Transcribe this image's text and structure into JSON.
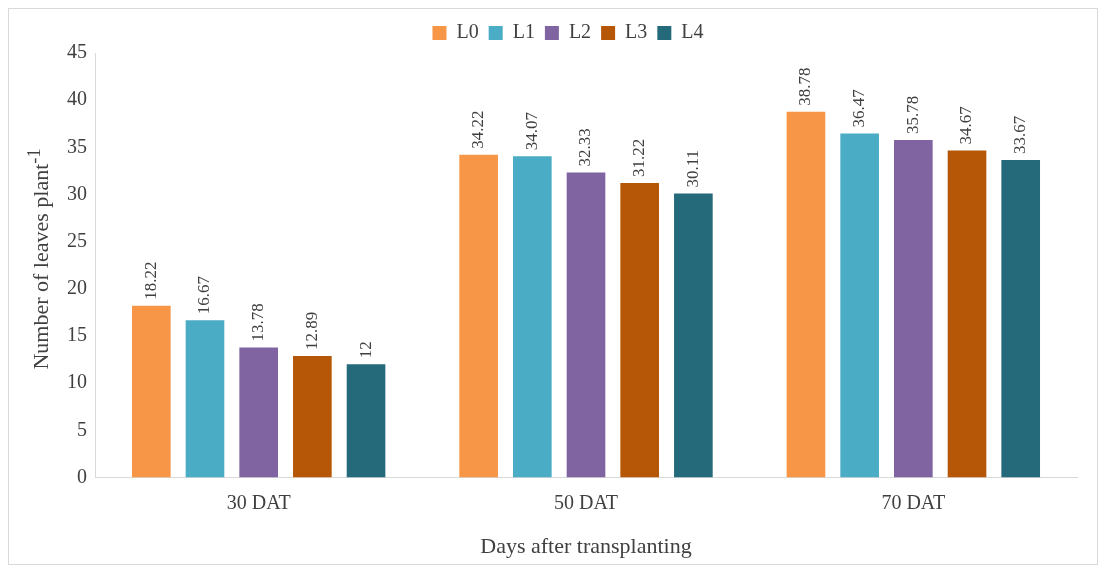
{
  "chart_data": {
    "type": "bar",
    "xlabel": "Days after transplanting",
    "ylabel": "Number of leaves plant$^{-1}$",
    "categories": [
      "30 DAT",
      "50 DAT",
      "70 DAT"
    ],
    "series": [
      {
        "name": "L0",
        "color": "#f79646",
        "values": [
          18.22,
          34.22,
          38.78
        ]
      },
      {
        "name": "L1",
        "color": "#4bacc6",
        "values": [
          16.67,
          34.07,
          36.47
        ]
      },
      {
        "name": "L2",
        "color": "#8064a2",
        "values": [
          13.78,
          32.33,
          35.78
        ]
      },
      {
        "name": "L3",
        "color": "#b65708",
        "values": [
          12.89,
          31.22,
          34.67
        ]
      },
      {
        "name": "L4",
        "color": "#256a7a",
        "values": [
          12,
          30.11,
          33.67
        ]
      }
    ],
    "ylim": [
      0,
      45
    ],
    "yticks": [
      0,
      5,
      10,
      15,
      20,
      25,
      30,
      35,
      40,
      45
    ],
    "grid": false,
    "legend": "top",
    "data_labels": true
  }
}
